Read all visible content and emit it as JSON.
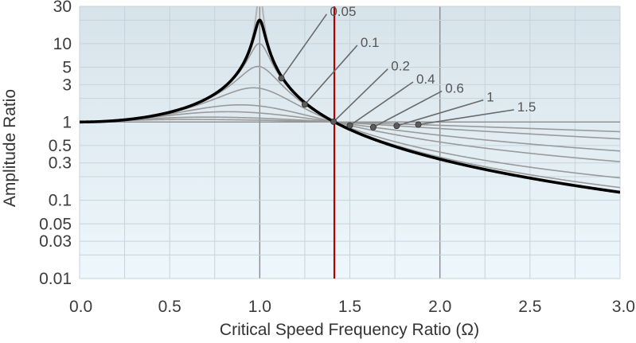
{
  "chart_data": {
    "type": "line",
    "title": "",
    "xlabel": "Critical Speed Frequency Ratio (Ω)",
    "ylabel": "Amplitude Ratio",
    "x_scale": "linear",
    "y_scale": "log",
    "xlim": [
      0.0,
      3.0
    ],
    "ylim": [
      0.01,
      30
    ],
    "x_ticks": [
      "0.0",
      "0.5",
      "1.0",
      "1.5",
      "2.0",
      "2.5",
      "3.0"
    ],
    "y_ticks": [
      {
        "value": 30,
        "label": "30"
      },
      {
        "value": 10,
        "label": "10"
      },
      {
        "value": 5,
        "label": "5"
      },
      {
        "value": 3,
        "label": "3"
      },
      {
        "value": 1,
        "label": "1"
      },
      {
        "value": 0.5,
        "label": "0.5"
      },
      {
        "value": 0.3,
        "label": "0.3"
      },
      {
        "value": 0.1,
        "label": "0.1"
      },
      {
        "value": 0.05,
        "label": "0.05"
      },
      {
        "value": 0.03,
        "label": "0.03"
      },
      {
        "value": 0.01,
        "label": "0.01"
      }
    ],
    "grid": true,
    "reference_line": {
      "x": 1.414,
      "color": "#b00000"
    },
    "curve_model": "transmissibility",
    "series": [
      {
        "damping": 0.025,
        "emphasis": "bold",
        "color": "#000000"
      },
      {
        "damping": 0.005,
        "emphasis": "thin",
        "color": "#b4b4b4"
      },
      {
        "damping": 0.01,
        "emphasis": "thin",
        "color": "#b4b4b4"
      },
      {
        "damping": 0.05,
        "emphasis": "thin",
        "color": "#9a9a9a"
      },
      {
        "damping": 0.1,
        "emphasis": "thin",
        "color": "#9a9a9a"
      },
      {
        "damping": 0.2,
        "emphasis": "thin",
        "color": "#9a9a9a"
      },
      {
        "damping": 0.4,
        "emphasis": "thin",
        "color": "#9a9a9a"
      },
      {
        "damping": 0.6,
        "emphasis": "thin",
        "color": "#9a9a9a"
      },
      {
        "damping": 1.0,
        "emphasis": "thin",
        "color": "#9a9a9a"
      },
      {
        "damping": 1.5,
        "emphasis": "thin",
        "color": "#9a9a9a"
      }
    ],
    "annotations": [
      {
        "label": "0.05",
        "damping": 0.05,
        "point_x": 1.12,
        "label_x": 1.38,
        "label_y": 25
      },
      {
        "label": "0.1",
        "damping": 0.1,
        "point_x": 1.25,
        "label_x": 1.55,
        "label_y": 10
      },
      {
        "label": "0.2",
        "damping": 0.2,
        "point_x": 1.41,
        "label_x": 1.72,
        "label_y": 5
      },
      {
        "label": "0.4",
        "damping": 0.4,
        "point_x": 1.5,
        "label_x": 1.86,
        "label_y": 3.4
      },
      {
        "label": "0.6",
        "damping": 0.6,
        "point_x": 1.63,
        "label_x": 2.02,
        "label_y": 2.6
      },
      {
        "label": "1",
        "damping": 1.0,
        "point_x": 1.76,
        "label_x": 2.25,
        "label_y": 2.0
      },
      {
        "label": "1.5",
        "damping": 1.5,
        "point_x": 1.88,
        "label_x": 2.42,
        "label_y": 1.5
      }
    ],
    "colors": {
      "background_top": "#d7e3ea",
      "background_bottom": "#edf7fc",
      "grid_minor": "#c7d3dc",
      "grid_major": "#8c8c8c"
    }
  }
}
